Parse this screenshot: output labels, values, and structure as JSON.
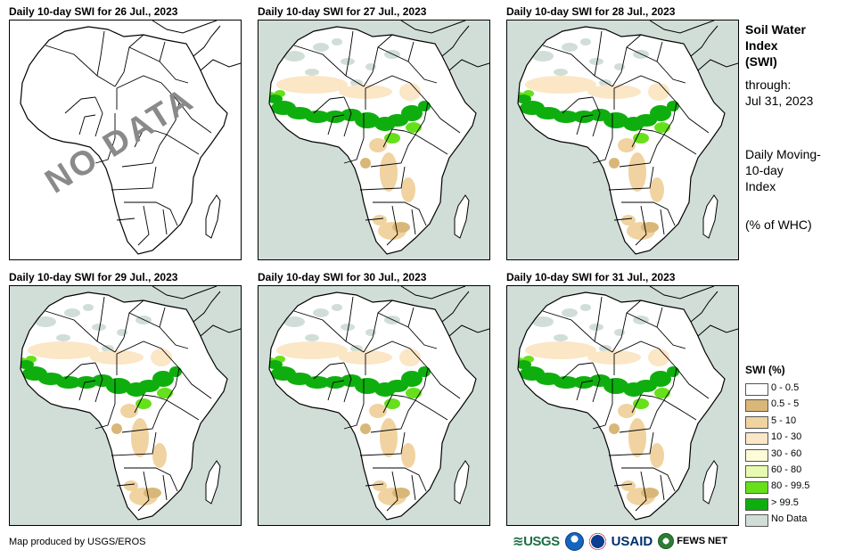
{
  "panels": [
    {
      "title": "Daily 10-day SWI for 26 Jul., 2023",
      "overlay": "NO DATA",
      "has_data": false
    },
    {
      "title": "Daily 10-day SWI for 27 Jul., 2023",
      "has_data": true
    },
    {
      "title": "Daily 10-day SWI for 28 Jul., 2023",
      "has_data": true
    },
    {
      "title": "Daily 10-day SWI for 29 Jul., 2023",
      "has_data": true
    },
    {
      "title": "Daily 10-day SWI for 30 Jul., 2023",
      "has_data": true
    },
    {
      "title": "Daily 10-day SWI for 31 Jul., 2023",
      "has_data": true
    }
  ],
  "sidebar": {
    "title_line1": "Soil Water",
    "title_line2": "Index",
    "title_line3": "(SWI)",
    "through_label": "through:",
    "through_date": "Jul 31, 2023",
    "desc_line1": "Daily Moving-",
    "desc_line2": "10-day",
    "desc_line3": "Index",
    "units": "(% of WHC)"
  },
  "legend": {
    "title": "SWI (%)",
    "items": [
      {
        "label": "0 - 0.5",
        "color": "#ffffff"
      },
      {
        "label": "0.5 - 5",
        "color": "#d9b779"
      },
      {
        "label": "5 - 10",
        "color": "#f0d3a0"
      },
      {
        "label": "10 - 30",
        "color": "#fbe6c6"
      },
      {
        "label": "30 - 60",
        "color": "#fefbd8"
      },
      {
        "label": "60 - 80",
        "color": "#e6fbb0"
      },
      {
        "label": "80 - 99.5",
        "color": "#66e01a"
      },
      {
        "label": "> 99.5",
        "color": "#0fae0f"
      },
      {
        "label": "No Data",
        "color": "#d1ded8"
      }
    ]
  },
  "credit": "Map produced by USGS/EROS",
  "logos": {
    "usgs": "USGS",
    "usaid": "USAID",
    "fews": "FEWS NET"
  },
  "colors": {
    "ocean": "#d1ded8",
    "land": "#ffffff",
    "border": "#000000",
    "wet": "#0fae0f",
    "moist": "#66e01a",
    "dry": "#f0d3a0"
  }
}
